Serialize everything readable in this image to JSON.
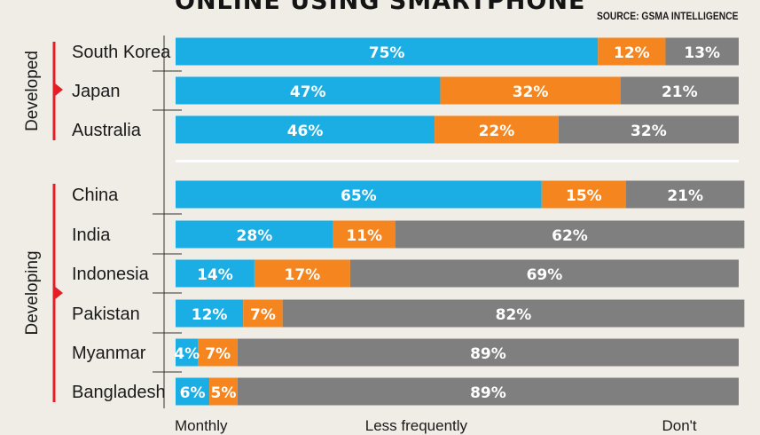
{
  "title": "ONLINE USING SMARTPHONE",
  "source": "SOURCE: GSMA INTELLIGENCE",
  "footer": [
    "Monthly",
    "Less frequently",
    "Don't"
  ],
  "colors": {
    "seg0": "#1aaee5",
    "seg1": "#f5861f",
    "seg2": "#7f7f7f",
    "accent": "#e21f26",
    "axis": "#333333",
    "divider": "#ffffff"
  },
  "chart_data": {
    "type": "bar",
    "stacked": true,
    "orientation": "horizontal",
    "xlim": [
      0,
      100
    ],
    "groups": [
      {
        "name": "Developed",
        "categories": [
          "South Korea",
          "Japan",
          "Australia"
        ]
      },
      {
        "name": "Developing",
        "categories": [
          "China",
          "India",
          "Indonesia",
          "Pakistan",
          "Myanmar",
          "Bangladesh"
        ]
      }
    ],
    "categories": [
      "South Korea",
      "Japan",
      "Australia",
      "China",
      "India",
      "Indonesia",
      "Pakistan",
      "Myanmar",
      "Bangladesh"
    ],
    "series": [
      {
        "values": [
          75,
          47,
          46,
          65,
          28,
          14,
          12,
          4,
          6
        ]
      },
      {
        "values": [
          12,
          32,
          22,
          15,
          11,
          17,
          7,
          7,
          5
        ]
      },
      {
        "values": [
          13,
          21,
          32,
          21,
          62,
          69,
          82,
          89,
          89
        ]
      }
    ],
    "data_labels": [
      [
        "75%",
        "12%",
        "13%"
      ],
      [
        "47%",
        "32%",
        "21%"
      ],
      [
        "46%",
        "22%",
        "32%"
      ],
      [
        "65%",
        "15%",
        "21%"
      ],
      [
        "28%",
        "11%",
        "62%"
      ],
      [
        "14%",
        "17%",
        "69%"
      ],
      [
        "12%",
        "7%",
        "82%"
      ],
      [
        "4%",
        "7%",
        "89%"
      ],
      [
        "6%",
        "5%",
        "89%"
      ]
    ]
  }
}
